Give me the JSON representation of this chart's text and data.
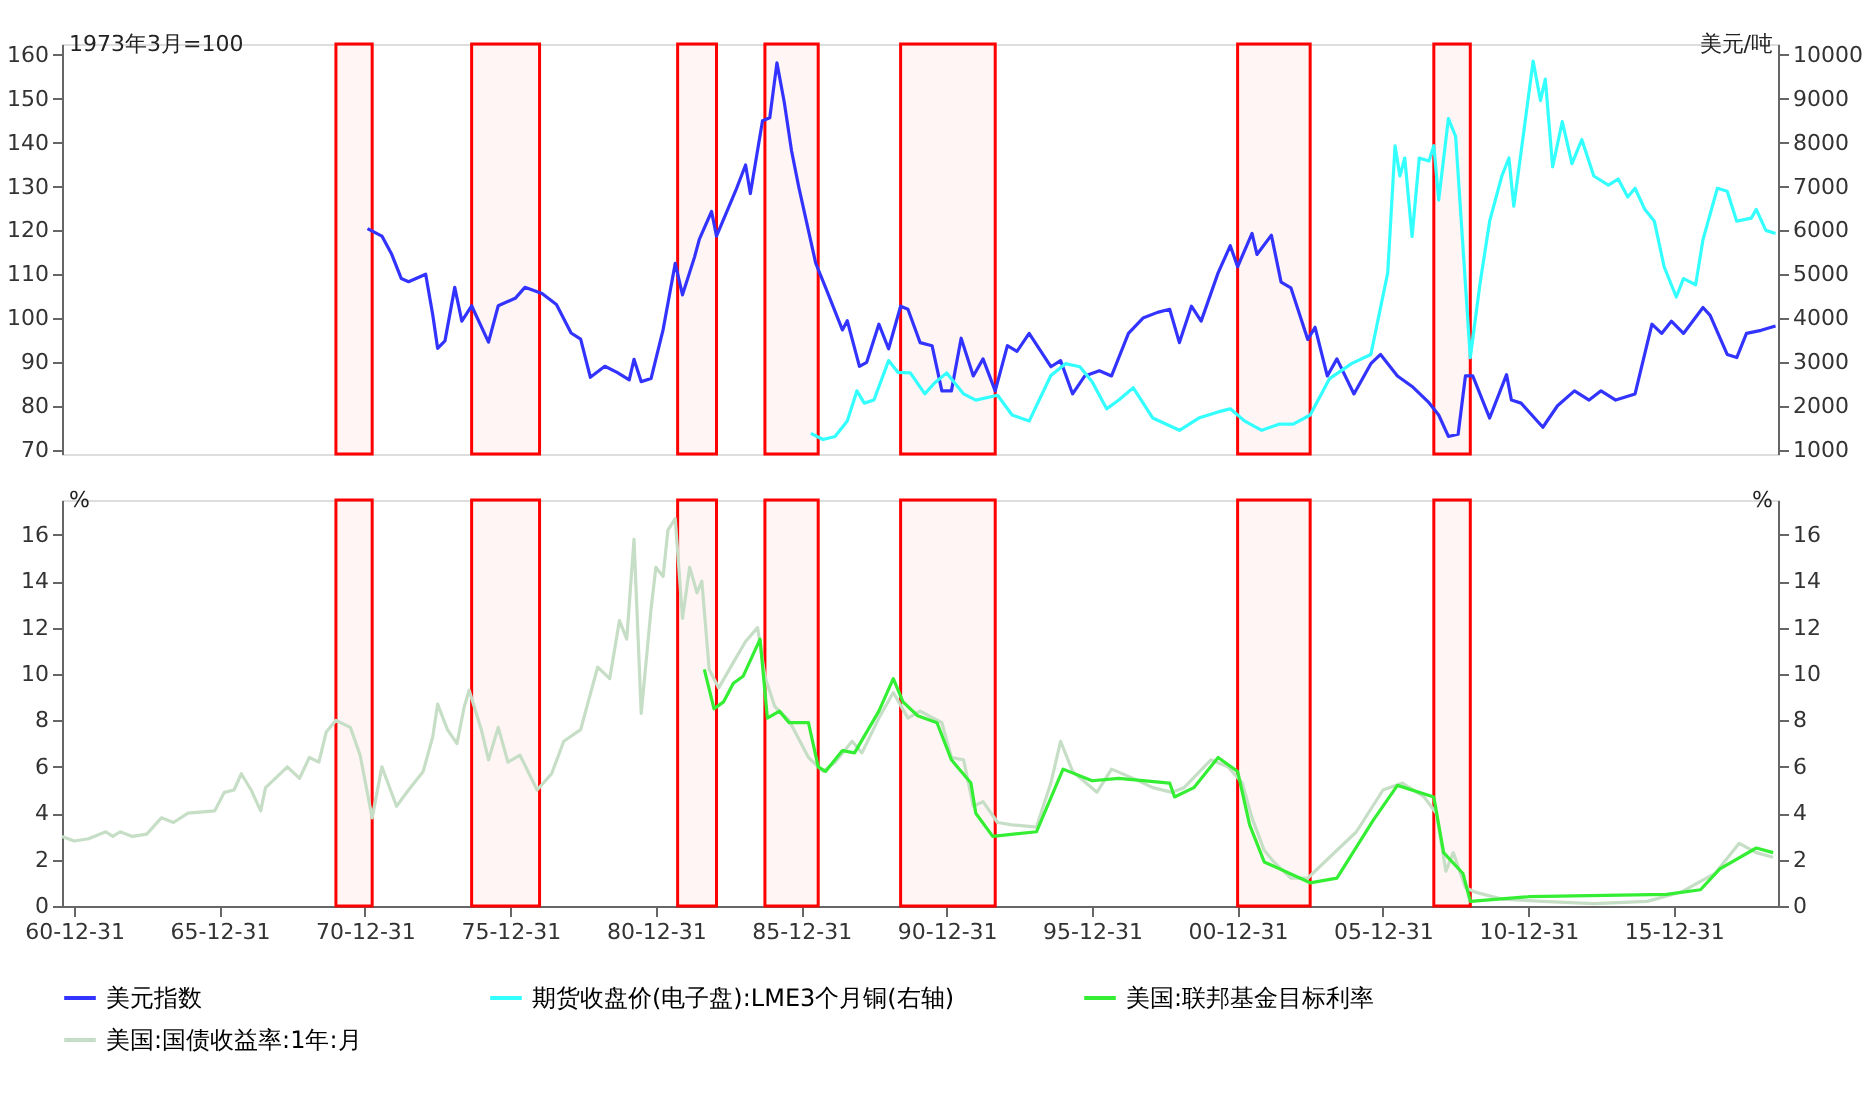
{
  "chart_data": [
    {
      "type": "line",
      "ylabel": "1973年3月=100",
      "y2label": "美元/吨",
      "legend": "bottom",
      "grid": false,
      "tick_labels": "y",
      "xlim": [
        "1960-08",
        "2019-08"
      ],
      "ylim": [
        69,
        162.5
      ],
      "yticks": [
        70,
        80,
        90,
        100,
        110,
        120,
        130,
        140,
        150,
        160
      ],
      "y2lim": [
        900,
        10250
      ],
      "y2ticks": [
        1000,
        2000,
        3000,
        4000,
        5000,
        6000,
        7000,
        8000,
        9000,
        10000
      ],
      "bands": [
        {
          "axis": "x",
          "from": "1970-01",
          "to": "1971-04",
          "color": "#ff0000"
        },
        {
          "axis": "x",
          "from": "1974-09",
          "to": "1977-01",
          "color": "#ff0000"
        },
        {
          "axis": "x",
          "from": "1981-10",
          "to": "1983-02",
          "color": "#ff0000"
        },
        {
          "axis": "x",
          "from": "1984-10",
          "to": "1986-08",
          "color": "#ff0000"
        },
        {
          "axis": "x",
          "from": "1989-06",
          "to": "1992-09",
          "color": "#ff0000"
        },
        {
          "axis": "x",
          "from": "2001-01",
          "to": "2003-07",
          "color": "#ff0000"
        },
        {
          "axis": "x",
          "from": "2007-10",
          "to": "2009-01",
          "color": "#ff0000"
        }
      ],
      "series": [
        {
          "name": "美元指数",
          "color": "#3333ff",
          "x": [
            "1971-02",
            "1971-08",
            "1971-12",
            "1972-04",
            "1972-07",
            "1973-02",
            "1973-05",
            "1973-07",
            "1973-10",
            "1974-02",
            "1974-05",
            "1974-09",
            "1975-04",
            "1975-08",
            "1976-03",
            "1976-07",
            "1977-02",
            "1977-08",
            "1978-02",
            "1978-06",
            "1978-10",
            "1979-04",
            "1979-09",
            "1980-02",
            "1980-04",
            "1980-07",
            "1980-11",
            "1981-04",
            "1981-09",
            "1981-12",
            "1982-05",
            "1982-07",
            "1982-12",
            "1983-02",
            "1983-10",
            "1984-02",
            "1984-04",
            "1984-09",
            "1984-12",
            "1985-03",
            "1985-06",
            "1985-09",
            "1985-12",
            "1986-07",
            "1986-11",
            "1987-06",
            "1987-08",
            "1988-01",
            "1988-04",
            "1988-09",
            "1989-01",
            "1989-06",
            "1989-09",
            "1990-02",
            "1990-07",
            "1990-11",
            "1991-03",
            "1991-07",
            "1991-12",
            "1992-04",
            "1992-09",
            "1993-02",
            "1993-06",
            "1993-11",
            "1994-08",
            "1994-12",
            "1995-05",
            "1995-10",
            "1996-04",
            "1996-09",
            "1997-04",
            "1997-10",
            "1998-04",
            "1998-09",
            "1999-01",
            "1999-06",
            "1999-10",
            "2000-05",
            "2000-10",
            "2001-01",
            "2001-07",
            "2001-09",
            "2002-03",
            "2002-07",
            "2002-11",
            "2003-06",
            "2003-09",
            "2004-02",
            "2004-06",
            "2005-01",
            "2005-08",
            "2005-12",
            "2006-07",
            "2007-01",
            "2007-08",
            "2007-12",
            "2008-04",
            "2008-08",
            "2008-11",
            "2009-02",
            "2009-09",
            "2010-04",
            "2010-06",
            "2010-10",
            "2011-07",
            "2012-01",
            "2012-08",
            "2013-02",
            "2013-07",
            "2014-01",
            "2014-09",
            "2015-04",
            "2015-08",
            "2015-12",
            "2016-05",
            "2017-01",
            "2017-04",
            "2017-11",
            "2018-03",
            "2018-07",
            "2019-01",
            "2019-07"
          ],
          "values": [
            120.4,
            118.7,
            114.6,
            109,
            108.3,
            110,
            100.7,
            93.1,
            94.8,
            107,
            99.3,
            102.8,
            94.5,
            102.8,
            104.5,
            107,
            105.6,
            103.1,
            96.6,
            95.2,
            86.5,
            89,
            87.6,
            85.9,
            90.6,
            85.5,
            86.2,
            97.3,
            112.5,
            105.3,
            113.9,
            118,
            124.3,
            118.7,
            129.1,
            134.9,
            128.4,
            145,
            145.7,
            158.2,
            149.2,
            138.1,
            129.8,
            112.5,
            107,
            97.3,
            99.4,
            89,
            89.9,
            98.6,
            93,
            102.7,
            102,
            94.4,
            93.7,
            83.4,
            83.4,
            95.4,
            86.8,
            90.7,
            83.4,
            93.7,
            92.4,
            96.5,
            88.9,
            90.3,
            82.7,
            86.8,
            88,
            86.8,
            96.5,
            100,
            101.3,
            102,
            94.4,
            102.7,
            99.3,
            110.3,
            116.5,
            111.7,
            119.3,
            114.5,
            118.9,
            108.2,
            106.9,
            95.1,
            97.9,
            86.8,
            90.7,
            82.7,
            89.6,
            91.7,
            86.8,
            84.4,
            80.7,
            77.9,
            73,
            73.5,
            86.8,
            86.8,
            77.2,
            87.1,
            81.3,
            80.6,
            75.1,
            80,
            83.4,
            81.3,
            83.4,
            81.3,
            82.7,
            98.6,
            96.5,
            99.3,
            96.5,
            102.4,
            100.6,
            91.7,
            91,
            96.5,
            97.2,
            98.2
          ]
        },
        {
          "name": "期货收盘价(电子盘):LME3个月铜(右轴)",
          "color": "#33ffff",
          "axis": "y2",
          "x": [
            "1986-05",
            "1986-10",
            "1987-03",
            "1987-08",
            "1987-12",
            "1988-03",
            "1988-07",
            "1989-01",
            "1989-05",
            "1989-10",
            "1990-04",
            "1990-08",
            "1991-01",
            "1991-08",
            "1992-01",
            "1992-10",
            "1993-04",
            "1993-11",
            "1994-08",
            "1995-02",
            "1995-08",
            "1996-01",
            "1996-07",
            "1996-12",
            "1997-06",
            "1998-02",
            "1999-01",
            "1999-09",
            "2000-05",
            "2000-10",
            "2001-04",
            "2001-11",
            "2002-06",
            "2002-12",
            "2003-07",
            "2004-03",
            "2004-12",
            "2005-08",
            "2006-03",
            "2006-06",
            "2006-08",
            "2006-10",
            "2007-01",
            "2007-04",
            "2007-08",
            "2007-10",
            "2007-12",
            "2008-04",
            "2008-07",
            "2009-01",
            "2009-05",
            "2009-09",
            "2010-02",
            "2010-05",
            "2010-07",
            "2010-10",
            "2011-03",
            "2011-06",
            "2011-08",
            "2011-11",
            "2012-03",
            "2012-07",
            "2012-11",
            "2013-04",
            "2013-10",
            "2014-02",
            "2014-06",
            "2014-09",
            "2015-01",
            "2015-05",
            "2015-09",
            "2016-02",
            "2016-05",
            "2016-10",
            "2017-01",
            "2017-07",
            "2017-11",
            "2018-03",
            "2018-09",
            "2018-11",
            "2019-03",
            "2019-07"
          ],
          "values": [
            1370,
            1230,
            1300,
            1650,
            2340,
            2060,
            2130,
            3030,
            2760,
            2750,
            2270,
            2520,
            2750,
            2270,
            2130,
            2240,
            1790,
            1650,
            2690,
            2960,
            2890,
            2550,
            1930,
            2130,
            2410,
            1720,
            1440,
            1720,
            1860,
            1930,
            1650,
            1440,
            1580,
            1580,
            1790,
            2620,
            2960,
            3170,
            5030,
            7930,
            7240,
            7650,
            5860,
            7650,
            7580,
            7930,
            6690,
            8550,
            8140,
            3100,
            4760,
            6210,
            7240,
            7650,
            6550,
            7790,
            9860,
            8960,
            9450,
            7450,
            8480,
            7520,
            8070,
            7240,
            7030,
            7170,
            6760,
            6960,
            6480,
            6210,
            5170,
            4480,
            4900,
            4760,
            5790,
            6960,
            6890,
            6210,
            6280,
            6480,
            6000,
            5930
          ]
        }
      ]
    },
    {
      "type": "line",
      "ylabel": "%",
      "y2label": "%",
      "legend": "bottom",
      "grid": false,
      "xlim": [
        "1960-08",
        "2019-08"
      ],
      "xticks": [
        {
          "value": "1960-12-31",
          "label": "60-12-31"
        },
        {
          "value": "1965-12-31",
          "label": "65-12-31"
        },
        {
          "value": "1970-12-31",
          "label": "70-12-31"
        },
        {
          "value": "1975-12-31",
          "label": "75-12-31"
        },
        {
          "value": "1980-12-31",
          "label": "80-12-31"
        },
        {
          "value": "1985-12-31",
          "label": "85-12-31"
        },
        {
          "value": "1990-12-31",
          "label": "90-12-31"
        },
        {
          "value": "1995-12-31",
          "label": "95-12-31"
        },
        {
          "value": "2000-12-31",
          "label": "00-12-31"
        },
        {
          "value": "2005-12-31",
          "label": "05-12-31"
        },
        {
          "value": "2010-12-31",
          "label": "10-12-31"
        },
        {
          "value": "2015-12-31",
          "label": "15-12-31"
        }
      ],
      "ylim": [
        0,
        17.5
      ],
      "yticks": [
        0,
        2,
        4,
        6,
        8,
        10,
        12,
        14,
        16
      ],
      "y2lim": [
        0,
        17.5
      ],
      "y2ticks": [
        0,
        2,
        4,
        6,
        8,
        10,
        12,
        14,
        16
      ],
      "bands": [
        {
          "axis": "x",
          "from": "1970-01",
          "to": "1971-04",
          "color": "#ff0000"
        },
        {
          "axis": "x",
          "from": "1974-09",
          "to": "1977-01",
          "color": "#ff0000"
        },
        {
          "axis": "x",
          "from": "1981-10",
          "to": "1983-02",
          "color": "#ff0000"
        },
        {
          "axis": "x",
          "from": "1984-10",
          "to": "1986-08",
          "color": "#ff0000"
        },
        {
          "axis": "x",
          "from": "1989-06",
          "to": "1992-09",
          "color": "#ff0000"
        },
        {
          "axis": "x",
          "from": "2001-01",
          "to": "2003-07",
          "color": "#ff0000"
        },
        {
          "axis": "x",
          "from": "2007-10",
          "to": "2009-01",
          "color": "#ff0000"
        }
      ],
      "series": [
        {
          "name": "美国:联邦基金目标利率",
          "color": "#33ee33",
          "x": [
            "1982-09",
            "1983-01",
            "1983-05",
            "1983-09",
            "1984-01",
            "1984-08",
            "1984-11",
            "1985-04",
            "1985-08",
            "1986-04",
            "1986-08",
            "1986-11",
            "1987-06",
            "1987-11",
            "1988-09",
            "1989-03",
            "1989-07",
            "1990-01",
            "1990-09",
            "1991-03",
            "1991-11",
            "1992-01",
            "1992-08",
            "1994-02",
            "1995-01",
            "1996-01",
            "1996-12",
            "1998-09",
            "1998-11",
            "1999-07",
            "2000-05",
            "2001-01",
            "2001-06",
            "2001-12",
            "2003-07",
            "2004-06",
            "2005-09",
            "2006-07",
            "2007-10",
            "2008-02",
            "2008-10",
            "2009-01",
            "2011-01",
            "2015-10",
            "2016-12",
            "2017-08",
            "2018-11",
            "2019-06"
          ],
          "values": [
            10.2,
            8.5,
            8.8,
            9.6,
            9.9,
            11.5,
            8.1,
            8.4,
            7.9,
            7.9,
            6.0,
            5.8,
            6.7,
            6.6,
            8.4,
            9.8,
            8.8,
            8.2,
            7.9,
            6.3,
            5.3,
            4.0,
            3.0,
            3.2,
            5.9,
            5.4,
            5.5,
            5.3,
            4.7,
            5.1,
            6.4,
            5.8,
            3.5,
            1.9,
            1.0,
            1.2,
            3.7,
            5.2,
            4.7,
            2.3,
            1.4,
            0.2,
            0.4,
            0.5,
            0.7,
            1.6,
            2.5,
            2.3
          ]
        },
        {
          "name": "美国:国债收益率:1年:月",
          "color": "#c6dec6",
          "x": [
            "1960-08",
            "1961-01",
            "1961-07",
            "1962-02",
            "1962-05",
            "1962-08",
            "1963-01",
            "1963-07",
            "1964-01",
            "1964-06",
            "1964-12",
            "1965-11",
            "1966-03",
            "1966-07",
            "1966-10",
            "1967-02",
            "1967-06",
            "1967-08",
            "1968-01",
            "1968-05",
            "1968-10",
            "1969-02",
            "1969-06",
            "1969-09",
            "1970-01",
            "1970-07",
            "1970-11",
            "1971-04",
            "1971-08",
            "1972-02",
            "1972-07",
            "1973-01",
            "1973-05",
            "1973-07",
            "1973-11",
            "1974-03",
            "1974-06",
            "1974-08",
            "1975-01",
            "1975-04",
            "1975-08",
            "1975-12",
            "1976-05",
            "1976-12",
            "1977-06",
            "1977-11",
            "1978-06",
            "1979-01",
            "1979-06",
            "1979-10",
            "1980-01",
            "1980-04",
            "1980-07",
            "1980-11",
            "1981-01",
            "1981-04",
            "1981-06",
            "1981-09",
            "1981-12",
            "1982-03",
            "1982-06",
            "1982-08",
            "1982-11",
            "1983-03",
            "1983-09",
            "1984-02",
            "1984-07",
            "1984-10",
            "1985-02",
            "1985-08",
            "1986-04",
            "1986-10",
            "1987-03",
            "1987-10",
            "1988-02",
            "1988-09",
            "1989-03",
            "1989-09",
            "1990-02",
            "1990-11",
            "1991-03",
            "1991-08",
            "1991-12",
            "1992-04",
            "1992-10",
            "1993-04",
            "1994-02",
            "1994-08",
            "1994-12",
            "1995-05",
            "1996-03",
            "1996-09",
            "1997-06",
            "1998-02",
            "1998-10",
            "1999-03",
            "2000-02",
            "2000-09",
            "2001-03",
            "2001-07",
            "2001-12",
            "2002-04",
            "2002-11",
            "2003-06",
            "2004-03",
            "2005-02",
            "2006-01",
            "2006-09",
            "2007-06",
            "2007-11",
            "2008-03",
            "2008-06",
            "2008-11",
            "2009-03",
            "2010-02",
            "2011-07",
            "2013-04",
            "2015-02",
            "2016-04",
            "2017-06",
            "2018-04",
            "2018-11",
            "2019-06"
          ],
          "values": [
            3.0,
            2.8,
            2.9,
            3.2,
            3.0,
            3.2,
            3.0,
            3.1,
            3.8,
            3.6,
            4.0,
            4.1,
            4.9,
            5.0,
            5.7,
            5.0,
            4.1,
            5.1,
            5.6,
            6.0,
            5.5,
            6.4,
            6.2,
            7.5,
            8.0,
            7.7,
            6.5,
            3.8,
            6.0,
            4.3,
            5.0,
            5.8,
            7.3,
            8.7,
            7.6,
            7.0,
            8.6,
            9.3,
            7.6,
            6.3,
            7.7,
            6.2,
            6.5,
            5.0,
            5.7,
            7.1,
            7.6,
            10.3,
            9.8,
            12.3,
            11.5,
            15.8,
            8.3,
            12.8,
            14.6,
            14.2,
            16.2,
            16.7,
            12.4,
            14.6,
            13.5,
            14.0,
            10.2,
            9.4,
            10.5,
            11.4,
            12.0,
            9.9,
            8.6,
            8.0,
            6.4,
            5.8,
            6.2,
            7.1,
            6.6,
            8.1,
            9.2,
            8.1,
            8.4,
            7.9,
            6.4,
            6.3,
            4.3,
            4.5,
            3.6,
            3.5,
            3.4,
            5.3,
            7.1,
            5.8,
            4.9,
            5.9,
            5.5,
            5.1,
            4.9,
            5.1,
            6.3,
            6.0,
            5.3,
            3.8,
            2.4,
            1.9,
            1.2,
            1.2,
            2.1,
            3.2,
            5.0,
            5.3,
            4.7,
            4.0,
            1.5,
            2.3,
            0.8,
            0.6,
            0.3,
            0.2,
            0.1,
            0.2,
            0.6,
            1.4,
            2.7,
            2.3,
            2.1
          ]
        }
      ]
    }
  ]
}
